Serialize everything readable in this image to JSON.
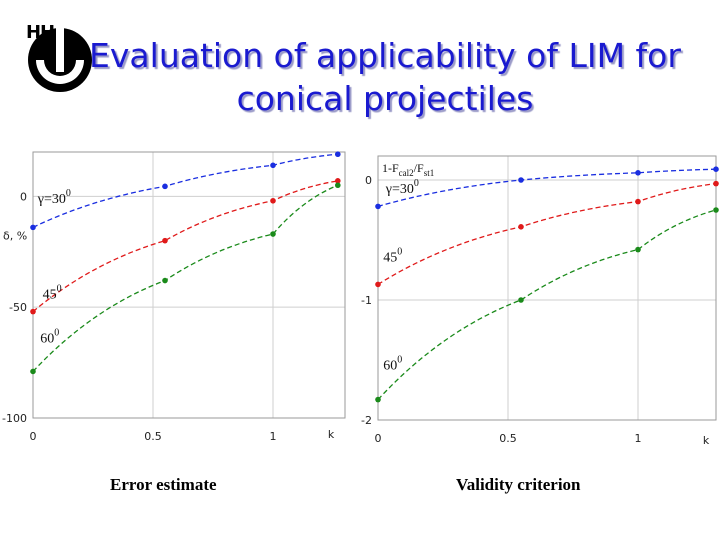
{
  "title": "Evaluation of applicability of LIM for conical projectiles",
  "captions": [
    "Error estimate",
    "Validity criterion"
  ],
  "colors": {
    "title": "#1a1ad0",
    "s1": "#1a2ee0",
    "s2": "#e01a1a",
    "s3": "#1a8a1a"
  },
  "chart_data": [
    {
      "type": "scatter",
      "title": "",
      "xlabel": "k",
      "ylabel": "δ, %",
      "xlim": [
        0,
        1.3
      ],
      "ylim": [
        -100,
        20
      ],
      "xticks": [
        "0",
        "0.5",
        "1"
      ],
      "yticks": [
        "0",
        "-50",
        "-100"
      ],
      "grid": true,
      "annotations": [
        {
          "text": "γ=30",
          "sup": "0",
          "x": 0.02,
          "y": -3
        },
        {
          "text": "45",
          "sup": "0",
          "x": 0.04,
          "y": -46
        },
        {
          "text": "60",
          "sup": "0",
          "x": 0.03,
          "y": -66
        }
      ],
      "series": [
        {
          "color": "#1a2ee0",
          "x": [
            0,
            0.55,
            1.0,
            1.27
          ],
          "y": [
            -14,
            4.5,
            14,
            19
          ]
        },
        {
          "color": "#e01a1a",
          "x": [
            0,
            0.55,
            1.0,
            1.27
          ],
          "y": [
            -52,
            -20,
            -2,
            7
          ]
        },
        {
          "color": "#1a8a1a",
          "x": [
            0,
            0.55,
            1.0,
            1.27
          ],
          "y": [
            -79,
            -38,
            -17,
            5
          ]
        }
      ]
    },
    {
      "type": "scatter",
      "title": "",
      "xlabel": "k",
      "ylabel": "1-F",
      "ylabel_sub": "cal2",
      "ylabel_mid": "/F",
      "ylabel_sub2": "st1",
      "xlim": [
        0,
        1.3
      ],
      "ylim": [
        -2,
        0.2
      ],
      "xticks": [
        "0",
        "0.5",
        "1",
        "k"
      ],
      "yticks": [
        "0",
        "-1",
        "-2"
      ],
      "grid": true,
      "annotations": [
        {
          "text": "γ=30",
          "sup": "0",
          "x": 0.03,
          "y": -0.11
        },
        {
          "text": "45",
          "sup": "0",
          "x": 0.02,
          "y": -0.68
        },
        {
          "text": "60",
          "sup": "0",
          "x": 0.02,
          "y": -1.58
        }
      ],
      "series": [
        {
          "color": "#1a2ee0",
          "x": [
            0,
            0.55,
            1.0,
            1.3
          ],
          "y": [
            -0.22,
            0.0,
            0.06,
            0.09
          ]
        },
        {
          "color": "#e01a1a",
          "x": [
            0,
            0.55,
            1.0,
            1.3
          ],
          "y": [
            -0.87,
            -0.39,
            -0.18,
            -0.03
          ]
        },
        {
          "color": "#1a8a1a",
          "x": [
            0,
            0.55,
            1.0,
            1.3
          ],
          "y": [
            -1.83,
            -1.0,
            -0.58,
            -0.25
          ]
        }
      ]
    }
  ]
}
